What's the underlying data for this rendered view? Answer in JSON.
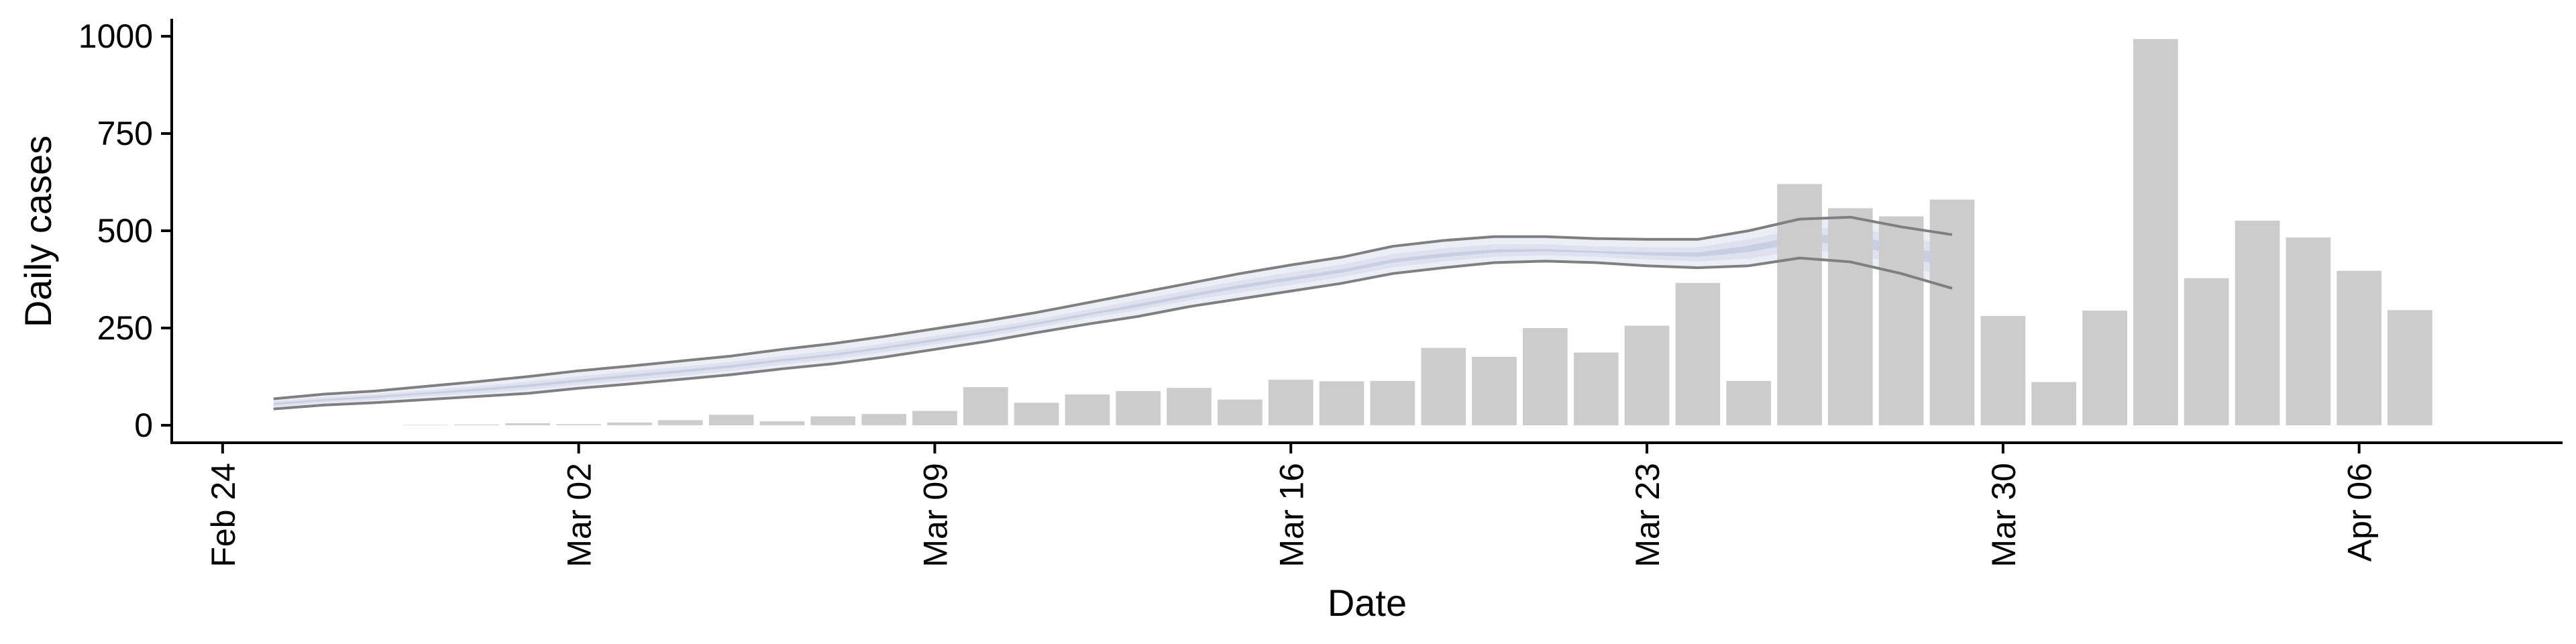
{
  "chart_data": {
    "type": "bar",
    "title": "",
    "xlabel": "Date",
    "ylabel": "Daily cases",
    "ylim": [
      -45,
      1045
    ],
    "xlim": [
      "2020-02-23",
      "2020-04-10"
    ],
    "yticks": [
      0,
      250,
      500,
      750,
      1000
    ],
    "xticks": [
      {
        "date": "2020-02-24",
        "label": "Feb 24"
      },
      {
        "date": "2020-03-02",
        "label": "Mar 02"
      },
      {
        "date": "2020-03-09",
        "label": "Mar 09"
      },
      {
        "date": "2020-03-16",
        "label": "Mar 16"
      },
      {
        "date": "2020-03-23",
        "label": "Mar 23"
      },
      {
        "date": "2020-03-30",
        "label": "Mar 30"
      },
      {
        "date": "2020-04-06",
        "label": "Apr 06"
      }
    ],
    "bars": {
      "color": "#cccccc",
      "dates": [
        "2020-02-28",
        "2020-02-29",
        "2020-03-01",
        "2020-03-02",
        "2020-03-03",
        "2020-03-04",
        "2020-03-05",
        "2020-03-06",
        "2020-03-07",
        "2020-03-08",
        "2020-03-09",
        "2020-03-10",
        "2020-03-11",
        "2020-03-12",
        "2020-03-13",
        "2020-03-14",
        "2020-03-15",
        "2020-03-16",
        "2020-03-17",
        "2020-03-18",
        "2020-03-19",
        "2020-03-20",
        "2020-03-21",
        "2020-03-22",
        "2020-03-23",
        "2020-03-24",
        "2020-03-25",
        "2020-03-26",
        "2020-03-27",
        "2020-03-28",
        "2020-03-29",
        "2020-03-30",
        "2020-03-31",
        "2020-04-01",
        "2020-04-02",
        "2020-04-03",
        "2020-04-04",
        "2020-04-05",
        "2020-04-06",
        "2020-04-07"
      ],
      "values": [
        1,
        2,
        5,
        3,
        7,
        13,
        27,
        10,
        23,
        29,
        37,
        98,
        58,
        79,
        88,
        96,
        66,
        117,
        113,
        114,
        199,
        176,
        250,
        187,
        256,
        366,
        114,
        620,
        558,
        537,
        580,
        281,
        111,
        295,
        993,
        378,
        526,
        483,
        397,
        296
      ]
    },
    "band": {
      "dates": [
        "2020-02-25",
        "2020-02-26",
        "2020-02-27",
        "2020-02-28",
        "2020-02-29",
        "2020-03-01",
        "2020-03-02",
        "2020-03-03",
        "2020-03-04",
        "2020-03-05",
        "2020-03-06",
        "2020-03-07",
        "2020-03-08",
        "2020-03-09",
        "2020-03-10",
        "2020-03-11",
        "2020-03-12",
        "2020-03-13",
        "2020-03-14",
        "2020-03-15",
        "2020-03-16",
        "2020-03-17",
        "2020-03-18",
        "2020-03-19",
        "2020-03-20",
        "2020-03-21",
        "2020-03-22",
        "2020-03-23",
        "2020-03-24",
        "2020-03-25",
        "2020-03-26",
        "2020-03-27",
        "2020-03-28",
        "2020-03-29"
      ],
      "outer_upper": [
        68,
        80,
        88,
        100,
        112,
        125,
        140,
        152,
        165,
        178,
        195,
        210,
        228,
        248,
        268,
        290,
        315,
        340,
        365,
        390,
        412,
        432,
        460,
        475,
        485,
        485,
        480,
        478,
        478,
        500,
        530,
        535,
        510,
        490
      ],
      "outer_lower": [
        42,
        52,
        58,
        66,
        74,
        82,
        95,
        106,
        118,
        130,
        145,
        158,
        175,
        195,
        215,
        238,
        260,
        280,
        305,
        325,
        345,
        365,
        390,
        405,
        418,
        422,
        418,
        410,
        405,
        410,
        430,
        420,
        390,
        352
      ],
      "mid_upper": [
        62,
        72,
        80,
        90,
        100,
        112,
        126,
        138,
        150,
        163,
        178,
        192,
        210,
        230,
        250,
        272,
        297,
        322,
        347,
        372,
        393,
        413,
        440,
        455,
        465,
        465,
        460,
        458,
        458,
        478,
        505,
        510,
        485,
        462
      ],
      "mid_lower": [
        48,
        58,
        65,
        74,
        82,
        91,
        104,
        115,
        127,
        140,
        156,
        170,
        188,
        208,
        228,
        251,
        275,
        296,
        321,
        341,
        361,
        381,
        406,
        421,
        433,
        437,
        433,
        426,
        421,
        428,
        450,
        442,
        412,
        378
      ],
      "inner_upper": [
        57,
        67,
        75,
        84,
        94,
        105,
        118,
        130,
        142,
        155,
        170,
        184,
        202,
        222,
        242,
        264,
        288,
        312,
        337,
        361,
        381,
        401,
        427,
        442,
        452,
        453,
        448,
        445,
        444,
        462,
        488,
        490,
        462,
        436
      ],
      "inner_lower": [
        52,
        63,
        70,
        80,
        88,
        98,
        111,
        123,
        135,
        148,
        164,
        178,
        196,
        215,
        236,
        258,
        282,
        304,
        329,
        352,
        372,
        392,
        418,
        432,
        444,
        447,
        443,
        437,
        433,
        445,
        470,
        465,
        435,
        405
      ],
      "edge_color": "#7f7f7f",
      "outer_color": "#eceef5",
      "mid_color": "#dfe2ee",
      "inner_color": "#c9cfe2"
    }
  }
}
